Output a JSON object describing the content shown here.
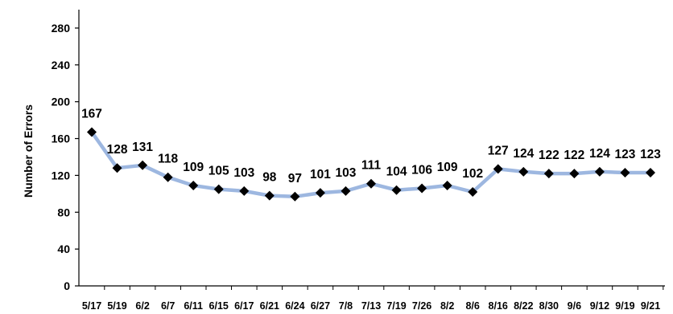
{
  "chart_data": {
    "type": "line",
    "title": "",
    "xlabel": "",
    "ylabel": "Number of Errors",
    "ylim": [
      0,
      300
    ],
    "yticks": [
      0,
      40,
      80,
      120,
      160,
      200,
      240,
      280
    ],
    "grid": false,
    "legend": "none",
    "categories": [
      "5/17",
      "5/19",
      "6/2",
      "6/7",
      "6/11",
      "6/15",
      "6/17",
      "6/21",
      "6/24",
      "6/27",
      "7/8",
      "7/13",
      "7/19",
      "7/26",
      "8/2",
      "8/6",
      "8/16",
      "8/22",
      "8/30",
      "9/6",
      "9/12",
      "9/19",
      "9/21"
    ],
    "series": [
      {
        "values": [
          167,
          128,
          131,
          118,
          109,
          105,
          103,
          98,
          97,
          101,
          103,
          111,
          104,
          106,
          109,
          102,
          127,
          124,
          122,
          122,
          124,
          123,
          123
        ],
        "line_color": "#9DB7E0",
        "marker_color": "#000000",
        "marker": "diamond"
      }
    ]
  }
}
